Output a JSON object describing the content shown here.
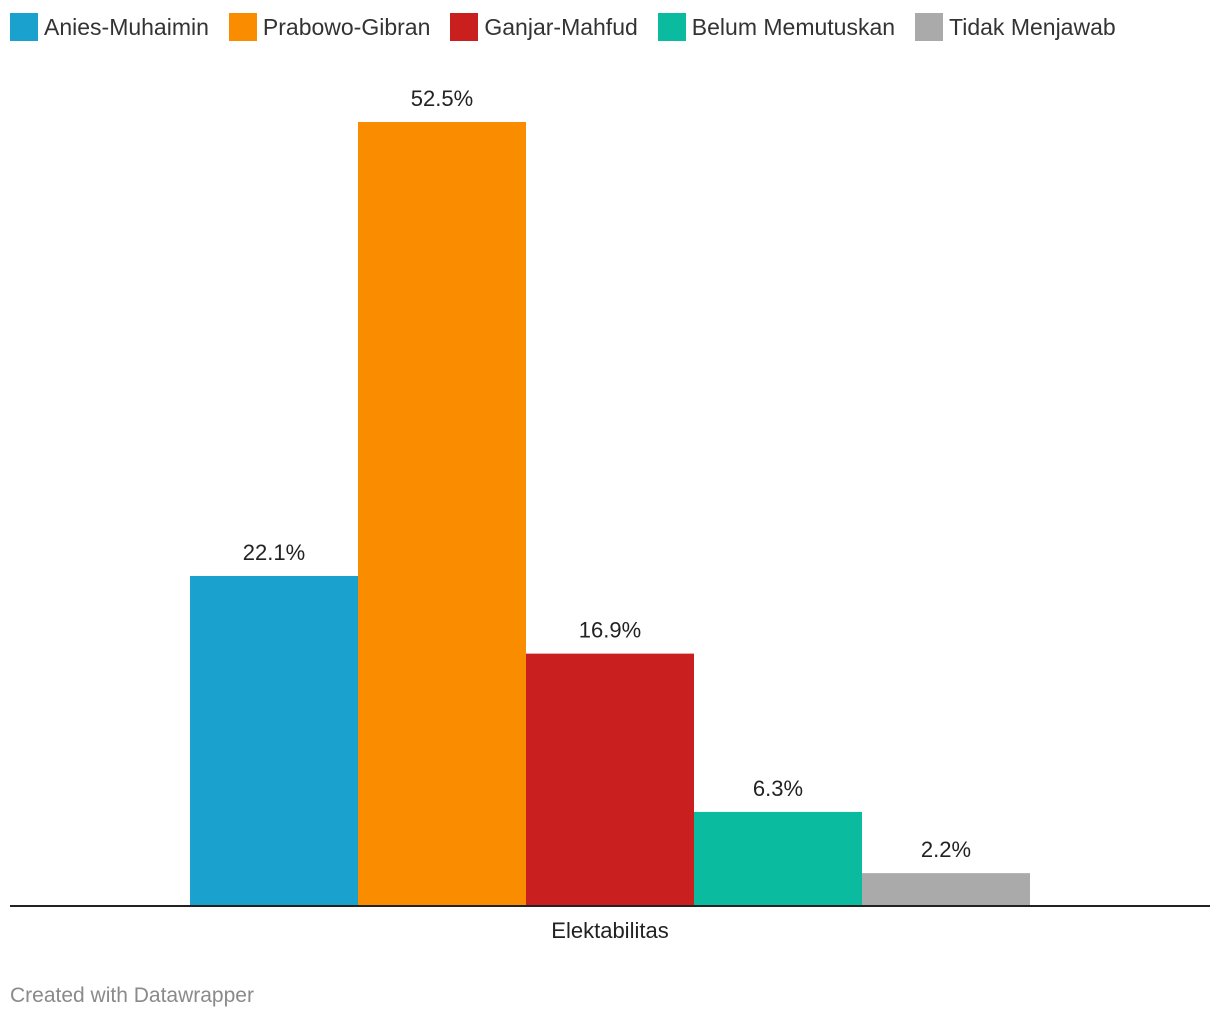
{
  "chart_data": {
    "type": "bar",
    "categories": [
      "Elektabilitas"
    ],
    "series": [
      {
        "name": "Anies-Muhaimin",
        "values": [
          22.1
        ],
        "color": "#1aa1ce",
        "label": "22.1%"
      },
      {
        "name": "Prabowo-Gibran",
        "values": [
          52.5
        ],
        "color": "#fa8c00",
        "label": "52.5%"
      },
      {
        "name": "Ganjar-Mahfud",
        "values": [
          16.9
        ],
        "color": "#c91f1f",
        "label": "16.9%"
      },
      {
        "name": "Belum Memutuskan",
        "values": [
          6.3
        ],
        "color": "#0bbba0",
        "label": "6.3%"
      },
      {
        "name": "Tidak Menjawab",
        "values": [
          2.2
        ],
        "color": "#aaaaaa",
        "label": "2.2%"
      }
    ],
    "ylim": [
      0,
      52.5
    ],
    "grid": false,
    "legend": "top-left"
  },
  "footer": {
    "credit": "Created with Datawrapper"
  }
}
